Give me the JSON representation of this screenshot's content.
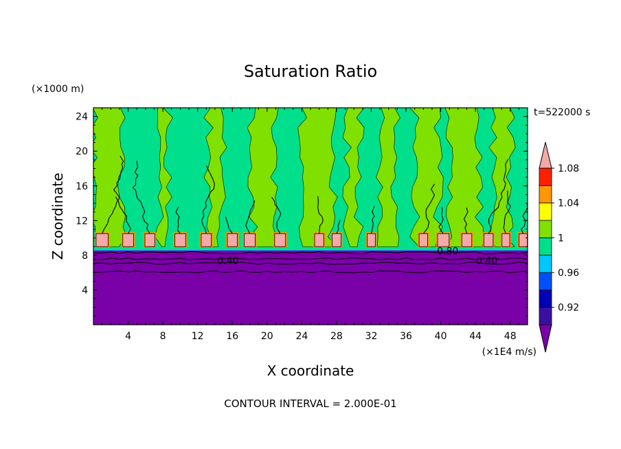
{
  "chart_data": {
    "type": "heatmap",
    "title": "Saturation Ratio",
    "xlabel": "X coordinate",
    "ylabel": "Z coordinate",
    "x_unit": "(×1E4 m/s)",
    "y_unit": "(×1000 m)",
    "time_label": "t=522000 s",
    "footer": "CONTOUR INTERVAL = 2.000E-01",
    "xlim": [
      0,
      50
    ],
    "ylim": [
      0,
      25
    ],
    "x_ticks": [
      4,
      8,
      12,
      16,
      20,
      24,
      28,
      32,
      36,
      40,
      44,
      48
    ],
    "y_ticks": [
      4,
      8,
      12,
      16,
      20,
      24
    ],
    "contour_labels": [
      {
        "text": "0.40",
        "x": 15.5,
        "y": 7.4
      },
      {
        "text": "0.80",
        "x": 40.8,
        "y": 8.5
      },
      {
        "text": "0.40",
        "x": 45.3,
        "y": 7.4
      }
    ],
    "colorbar": {
      "levels": [
        0.92,
        0.96,
        1,
        1.04,
        1.08
      ],
      "colors": [
        "#7a00a8",
        "#3a10a0",
        "#0000b8",
        "#0050ff",
        "#00c8ff",
        "#00e08c",
        "#80e000",
        "#ffff00",
        "#ff9800",
        "#ff2000",
        "#f4a8a8"
      ],
      "tick_labels": [
        "0.92",
        "0.96",
        "1",
        "1.04",
        "1.08"
      ]
    },
    "regions": {
      "dry_layer_top_z": 8.6,
      "cloud_base_z": 9.0,
      "supersaturated_columns_x": [
        1,
        4,
        6.5,
        10,
        13,
        16,
        18,
        21.5,
        26,
        28,
        32,
        38,
        40.3,
        43,
        45.5,
        47.5,
        49.5
      ]
    }
  }
}
